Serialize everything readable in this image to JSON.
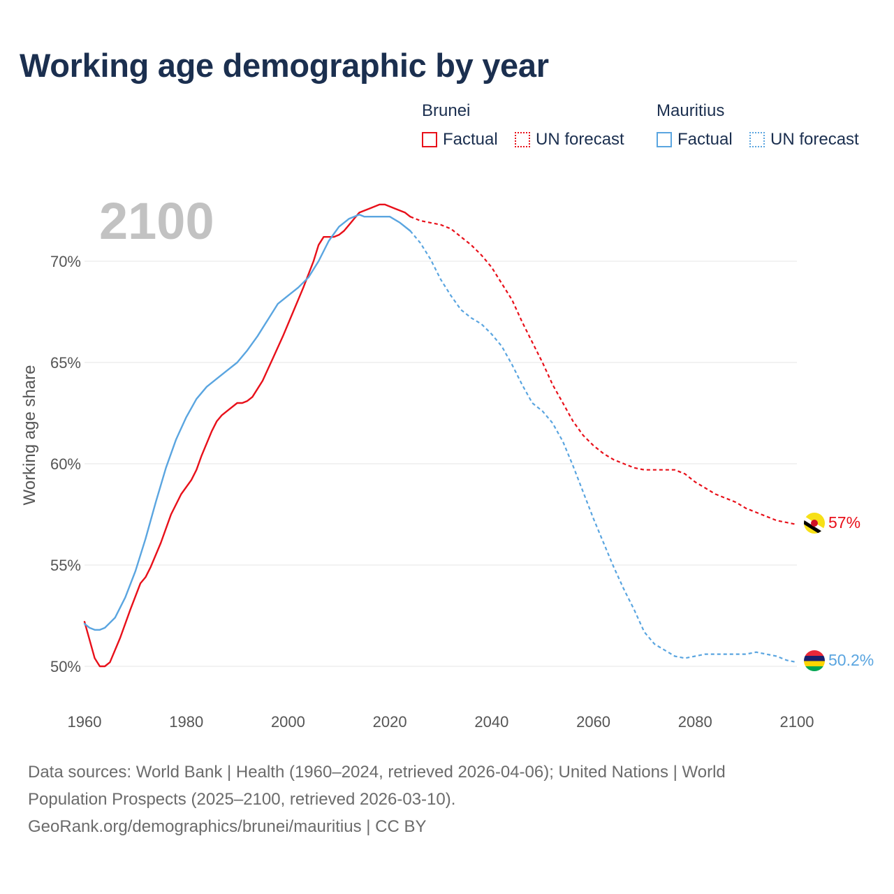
{
  "title": "Working age demographic by year",
  "legend": {
    "groups": [
      {
        "country": "Brunei",
        "factual": "Factual",
        "forecast": "UN forecast",
        "color": "#e8101a"
      },
      {
        "country": "Mauritius",
        "factual": "Factual",
        "forecast": "UN forecast",
        "color": "#5aa5e0"
      }
    ]
  },
  "footer": {
    "line1": "Data sources: World Bank | Health (1960–2024, retrieved 2026-04-06); United Nations | World",
    "line2": "Population Prospects (2025–2100, retrieved 2026-03-10).",
    "line3": "GeoRank.org/demographics/brunei/mauritius | CC BY"
  },
  "chart_data": {
    "type": "line",
    "title": "Working age demographic by year",
    "year_label": "2100",
    "xlabel": "",
    "ylabel": "Working age share",
    "xlim": [
      1960,
      2100
    ],
    "ylim": [
      48.5,
      73.5
    ],
    "x_ticks": [
      1960,
      1980,
      2000,
      2020,
      2040,
      2060,
      2080,
      2100
    ],
    "x_tick_labels": [
      "1960",
      "1980",
      "2000",
      "2020",
      "2040",
      "2060",
      "2080",
      "2100"
    ],
    "y_ticks": [
      50,
      55,
      60,
      65,
      70
    ],
    "y_tick_labels": [
      "50%",
      "55%",
      "60%",
      "65%",
      "70%"
    ],
    "forecast_start": 2024,
    "series": [
      {
        "name": "Brunei",
        "color": "#e8101a",
        "end_label": "57%",
        "points": [
          [
            1960,
            52.2
          ],
          [
            1962,
            50.4
          ],
          [
            1963,
            50.0
          ],
          [
            1964,
            50.0
          ],
          [
            1965,
            50.2
          ],
          [
            1967,
            51.4
          ],
          [
            1969,
            52.8
          ],
          [
            1971,
            54.1
          ],
          [
            1972,
            54.4
          ],
          [
            1973,
            54.9
          ],
          [
            1975,
            56.1
          ],
          [
            1977,
            57.5
          ],
          [
            1979,
            58.5
          ],
          [
            1981,
            59.2
          ],
          [
            1982,
            59.7
          ],
          [
            1983,
            60.4
          ],
          [
            1985,
            61.6
          ],
          [
            1986,
            62.1
          ],
          [
            1987,
            62.4
          ],
          [
            1988,
            62.6
          ],
          [
            1990,
            63.0
          ],
          [
            1991,
            63.0
          ],
          [
            1992,
            63.1
          ],
          [
            1993,
            63.3
          ],
          [
            1995,
            64.1
          ],
          [
            1997,
            65.2
          ],
          [
            1999,
            66.3
          ],
          [
            2001,
            67.5
          ],
          [
            2003,
            68.7
          ],
          [
            2005,
            70.0
          ],
          [
            2006,
            70.8
          ],
          [
            2007,
            71.2
          ],
          [
            2008,
            71.2
          ],
          [
            2009,
            71.2
          ],
          [
            2010,
            71.3
          ],
          [
            2011,
            71.5
          ],
          [
            2012,
            71.8
          ],
          [
            2013,
            72.1
          ],
          [
            2014,
            72.4
          ],
          [
            2016,
            72.6
          ],
          [
            2018,
            72.8
          ],
          [
            2019,
            72.8
          ],
          [
            2021,
            72.6
          ],
          [
            2023,
            72.4
          ],
          [
            2024,
            72.2
          ],
          [
            2026,
            72.0
          ],
          [
            2028,
            71.9
          ],
          [
            2030,
            71.8
          ],
          [
            2032,
            71.6
          ],
          [
            2034,
            71.2
          ],
          [
            2036,
            70.8
          ],
          [
            2038,
            70.3
          ],
          [
            2040,
            69.7
          ],
          [
            2042,
            68.9
          ],
          [
            2044,
            68.1
          ],
          [
            2046,
            67.0
          ],
          [
            2048,
            66.0
          ],
          [
            2050,
            65.0
          ],
          [
            2052,
            63.9
          ],
          [
            2054,
            63.0
          ],
          [
            2056,
            62.1
          ],
          [
            2058,
            61.4
          ],
          [
            2060,
            60.9
          ],
          [
            2062,
            60.5
          ],
          [
            2064,
            60.2
          ],
          [
            2066,
            60.0
          ],
          [
            2068,
            59.8
          ],
          [
            2070,
            59.7
          ],
          [
            2072,
            59.7
          ],
          [
            2074,
            59.7
          ],
          [
            2076,
            59.7
          ],
          [
            2078,
            59.5
          ],
          [
            2080,
            59.1
          ],
          [
            2082,
            58.8
          ],
          [
            2084,
            58.5
          ],
          [
            2086,
            58.3
          ],
          [
            2088,
            58.1
          ],
          [
            2090,
            57.8
          ],
          [
            2092,
            57.6
          ],
          [
            2094,
            57.4
          ],
          [
            2096,
            57.2
          ],
          [
            2098,
            57.1
          ],
          [
            2100,
            57.0
          ]
        ]
      },
      {
        "name": "Mauritius",
        "color": "#5aa5e0",
        "end_label": "50.2%",
        "points": [
          [
            1960,
            52.1
          ],
          [
            1961,
            51.9
          ],
          [
            1962,
            51.8
          ],
          [
            1963,
            51.8
          ],
          [
            1964,
            51.9
          ],
          [
            1966,
            52.4
          ],
          [
            1968,
            53.4
          ],
          [
            1970,
            54.7
          ],
          [
            1972,
            56.3
          ],
          [
            1974,
            58.1
          ],
          [
            1976,
            59.8
          ],
          [
            1978,
            61.2
          ],
          [
            1980,
            62.3
          ],
          [
            1982,
            63.2
          ],
          [
            1984,
            63.8
          ],
          [
            1986,
            64.2
          ],
          [
            1988,
            64.6
          ],
          [
            1990,
            65.0
          ],
          [
            1992,
            65.6
          ],
          [
            1994,
            66.3
          ],
          [
            1996,
            67.1
          ],
          [
            1998,
            67.9
          ],
          [
            2000,
            68.3
          ],
          [
            2002,
            68.7
          ],
          [
            2004,
            69.2
          ],
          [
            2006,
            70.0
          ],
          [
            2008,
            71.0
          ],
          [
            2010,
            71.7
          ],
          [
            2012,
            72.1
          ],
          [
            2013,
            72.2
          ],
          [
            2014,
            72.3
          ],
          [
            2015,
            72.2
          ],
          [
            2016,
            72.2
          ],
          [
            2018,
            72.2
          ],
          [
            2020,
            72.2
          ],
          [
            2022,
            71.9
          ],
          [
            2024,
            71.5
          ],
          [
            2026,
            70.9
          ],
          [
            2028,
            70.1
          ],
          [
            2030,
            69.1
          ],
          [
            2032,
            68.3
          ],
          [
            2034,
            67.6
          ],
          [
            2036,
            67.2
          ],
          [
            2038,
            66.9
          ],
          [
            2040,
            66.4
          ],
          [
            2042,
            65.8
          ],
          [
            2044,
            64.9
          ],
          [
            2046,
            63.9
          ],
          [
            2048,
            63.0
          ],
          [
            2050,
            62.6
          ],
          [
            2052,
            62.0
          ],
          [
            2054,
            61.1
          ],
          [
            2056,
            59.9
          ],
          [
            2058,
            58.6
          ],
          [
            2060,
            57.3
          ],
          [
            2062,
            56.1
          ],
          [
            2064,
            54.9
          ],
          [
            2066,
            53.8
          ],
          [
            2068,
            52.8
          ],
          [
            2070,
            51.7
          ],
          [
            2072,
            51.1
          ],
          [
            2074,
            50.8
          ],
          [
            2076,
            50.5
          ],
          [
            2078,
            50.4
          ],
          [
            2080,
            50.5
          ],
          [
            2082,
            50.6
          ],
          [
            2084,
            50.6
          ],
          [
            2086,
            50.6
          ],
          [
            2088,
            50.6
          ],
          [
            2090,
            50.6
          ],
          [
            2092,
            50.7
          ],
          [
            2094,
            50.6
          ],
          [
            2096,
            50.5
          ],
          [
            2098,
            50.3
          ],
          [
            2100,
            50.2
          ]
        ]
      }
    ]
  }
}
